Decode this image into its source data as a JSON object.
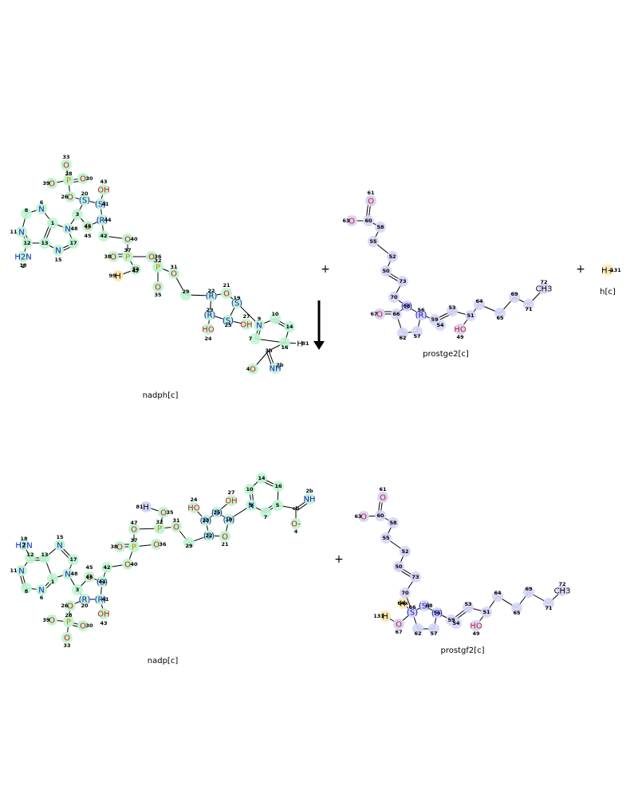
{
  "reaction": {
    "operators": [
      "+",
      "+",
      "+"
    ],
    "arrow": "down-arrow",
    "colors": {
      "green_highlight": "#bff5d2",
      "blue_highlight": "#d5d5f7",
      "yellow_highlight": "#fbe9b0",
      "nitrogen": "#1515c8",
      "oxygen": "#d01818",
      "phosphorus": "#d08000",
      "hydrogen": "#000000"
    },
    "reactants": [
      {
        "name": "nadph[c]",
        "atom_ids": [
          "1",
          "2",
          "3",
          "4",
          "6",
          "7",
          "8",
          "9",
          "10",
          "11",
          "12",
          "13",
          "14",
          "15",
          "16",
          "17",
          "18",
          "19",
          "20",
          "21",
          "22",
          "23",
          "24",
          "25",
          "26",
          "27",
          "28",
          "29",
          "30",
          "31",
          "32",
          "33",
          "34",
          "35",
          "36",
          "37",
          "38",
          "39",
          "40",
          "41",
          "42",
          "43",
          "44",
          "45",
          "46",
          "47",
          "48",
          "81",
          "99"
        ]
      },
      {
        "name": "prostge2[c]",
        "atom_ids": [
          "49",
          "50",
          "51",
          "52",
          "53",
          "54",
          "55",
          "56",
          "57",
          "58",
          "59",
          "60",
          "61",
          "62",
          "63",
          "64",
          "65",
          "66",
          "67",
          "68",
          "69",
          "70",
          "71",
          "72",
          "73"
        ]
      },
      {
        "name": "h[c]",
        "atom_ids": [
          "131"
        ]
      }
    ],
    "products": [
      {
        "name": "nadp[c]",
        "atom_ids": [
          "1",
          "2",
          "4",
          "6",
          "7",
          "8",
          "9",
          "10",
          "11",
          "12",
          "13",
          "14",
          "15",
          "16",
          "17",
          "18",
          "19",
          "20",
          "21",
          "22",
          "23",
          "24",
          "25",
          "26",
          "27",
          "28",
          "29",
          "30",
          "31",
          "32",
          "33",
          "35",
          "36",
          "37",
          "38",
          "39",
          "40",
          "41",
          "42",
          "43",
          "44",
          "45",
          "46",
          "47",
          "48",
          "81"
        ]
      },
      {
        "name": "prostgf2[c]",
        "atom_ids": [
          "49",
          "50",
          "51",
          "52",
          "53",
          "54",
          "55",
          "56",
          "57",
          "58",
          "59",
          "60",
          "61",
          "62",
          "63",
          "64",
          "65",
          "66",
          "67",
          "68",
          "69",
          "70",
          "71",
          "72",
          "73",
          "131"
        ]
      }
    ],
    "atom_symbols": [
      "N",
      "O",
      "P",
      "H",
      "OH",
      "NH",
      "H2N",
      "HO",
      "CH3",
      "O-",
      "H+",
      "(S)",
      "(R)"
    ]
  }
}
